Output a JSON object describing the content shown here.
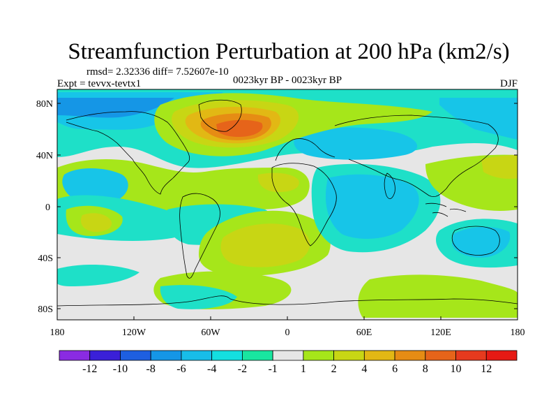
{
  "title": "Streamfunction Perturbation at 200 hPa (km2/s)",
  "stats": "rmsd= 2.32336 diff= 7.52607e-10",
  "experiment": "Expt = tevvx-tevtx1",
  "period": "0023kyr BP - 0023kyr BP",
  "season": "DJF",
  "lat_labels": [
    "80N",
    "40N",
    "0",
    "40S",
    "80S"
  ],
  "lon_labels": [
    "180",
    "120W",
    "60W",
    "0",
    "60E",
    "120E",
    "180"
  ],
  "colorbar": {
    "labels": [
      "-12",
      "-10",
      "-8",
      "-6",
      "-4",
      "-2",
      "-1",
      "1",
      "2",
      "4",
      "6",
      "8",
      "10",
      "12"
    ],
    "colors": [
      "#8a2be2",
      "#3a20d8",
      "#1e5fe0",
      "#1596e6",
      "#18bde8",
      "#14dfe0",
      "#19e6a0",
      "#e6e6e6",
      "#a6e61a",
      "#c8d614",
      "#e2b814",
      "#e68c14",
      "#e6641a",
      "#e63a1e",
      "#e61a14"
    ]
  },
  "map_colors": {
    "ocean_bg": "#e6e6e6",
    "coast": "#000000"
  }
}
